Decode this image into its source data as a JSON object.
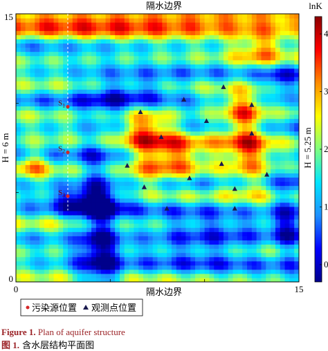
{
  "chart_data": {
    "type": "heatmap",
    "title_top": "隔水边界",
    "title_bottom": "隔水边界",
    "left_label": "H = 6 m",
    "right_label": "H = 5.25 m",
    "xlim": [
      0,
      15
    ],
    "ylim": [
      0,
      15
    ],
    "x_ticks": [
      "0",
      "5",
      "10",
      "15"
    ],
    "y_ticks": [
      "0",
      "5",
      "10",
      "15"
    ],
    "colorbar": {
      "label": "lnK",
      "range": [
        -0.3,
        4.3
      ],
      "ticks": [
        "0",
        "1",
        "2",
        "3",
        "4"
      ],
      "colors": [
        "#00008b",
        "#0000ff",
        "#1e90ff",
        "#00e5ff",
        "#7fff7f",
        "#ffff00",
        "#ff8c00",
        "#ff0000",
        "#8b0000"
      ]
    },
    "source_line_x": 2.75,
    "sources": [
      {
        "label": "S",
        "sub": "1",
        "x": 2.75,
        "y": 9.8
      },
      {
        "label": "S",
        "sub": "2",
        "x": 2.75,
        "y": 7.25
      },
      {
        "label": "S",
        "sub": "3",
        "x": 2.75,
        "y": 4.8
      }
    ],
    "observation_points": [
      {
        "x": 11.0,
        "y": 10.9
      },
      {
        "x": 8.9,
        "y": 10.2
      },
      {
        "x": 12.5,
        "y": 9.9
      },
      {
        "x": 6.6,
        "y": 9.5
      },
      {
        "x": 10.1,
        "y": 9.0
      },
      {
        "x": 12.5,
        "y": 8.3
      },
      {
        "x": 7.7,
        "y": 8.1
      },
      {
        "x": 5.9,
        "y": 6.5
      },
      {
        "x": 10.9,
        "y": 6.6
      },
      {
        "x": 9.2,
        "y": 5.8
      },
      {
        "x": 13.3,
        "y": 6.0
      },
      {
        "x": 6.8,
        "y": 5.3
      },
      {
        "x": 11.6,
        "y": 5.2
      },
      {
        "x": 8.0,
        "y": 4.1
      },
      {
        "x": 11.6,
        "y": 4.1
      }
    ],
    "legend": {
      "source_label": "污染源位置",
      "obs_label": "观测点位置"
    }
  },
  "caption": {
    "en_num": "Figure 1.",
    "en_text": "Plan of aquifer structure",
    "zh_num": "图 1.",
    "zh_text": "含水层结构平面图"
  },
  "colors": {
    "source_marker": "#d62728",
    "obs_marker": "#1a1a4e",
    "caption_accent": "#9b2226"
  }
}
